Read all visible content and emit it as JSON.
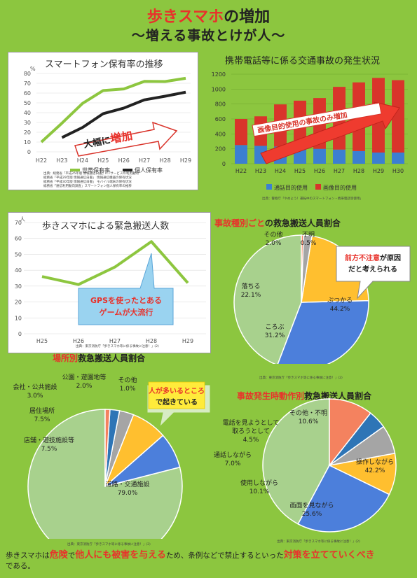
{
  "header": {
    "title_red": "歩きスマホ",
    "title_rest": "の増加",
    "subtitle": "〜増える事故とけが人〜"
  },
  "chart_data": [
    {
      "type": "line",
      "title": "スマートフォン保有率の推移",
      "ylabel": "%",
      "categories": [
        "H22",
        "H23",
        "H24",
        "H25",
        "H26",
        "H27",
        "H28",
        "H29"
      ],
      "ylim": [
        0,
        80
      ],
      "yticks": [
        0,
        10,
        20,
        30,
        40,
        50,
        60,
        70,
        80
      ],
      "series": [
        {
          "name": "世帯保有率",
          "color": "#8dc63f",
          "values": [
            10,
            29.3,
            49.5,
            62.6,
            64.2,
            72,
            71.8,
            75.1
          ]
        },
        {
          "name": "個人保有率",
          "color": "#222222",
          "values": [
            null,
            14.6,
            24.9,
            39,
            44.7,
            53.1,
            56.8,
            60.9
          ]
        }
      ],
      "annotation": {
        "text_pre": "大幅に",
        "text_em": "増加"
      },
      "source": [
        "出典：総務省「平成25年版 情報通信白書」ICTサービスの利用動向",
        "総務省「平成29年版 情報通信白書」",
        "情報通信機器の保有状況",
        "総務省「平成30年版 情報通信白書」",
        "モバイル端末の保有状況",
        "総務省「通信利用動向調査」スマートフォン個人保有率の推移"
      ]
    },
    {
      "type": "bar",
      "title": "携帯電話等に係る交通事故の発生状況",
      "categories": [
        "H22",
        "H23",
        "H24",
        "H25",
        "H26",
        "H27",
        "H28",
        "H29",
        "H30"
      ],
      "ylim": [
        0,
        1200
      ],
      "yticks": [
        0,
        200,
        400,
        600,
        800,
        1000,
        1200
      ],
      "series": [
        {
          "name": "通話目的使用",
          "color": "#3c7fd1",
          "values": [
            250,
            240,
            230,
            220,
            200,
            190,
            170,
            150,
            150
          ]
        },
        {
          "name": "画像目的使用",
          "color": "#d9342b",
          "values": [
            350,
            395,
            565,
            625,
            680,
            840,
            920,
            1000,
            970
          ]
        }
      ],
      "annotation": "画像目的使用の事故のみ増加",
      "source": "出典：警察庁「やめよう！運転中のスマートフォン・携帯電話等使用」"
    },
    {
      "type": "line",
      "title": "歩きスマホによる緊急搬送人数",
      "ylabel": "人",
      "categories": [
        "H25",
        "H26",
        "H27",
        "H28",
        "H29"
      ],
      "ylim": [
        0,
        70
      ],
      "yticks": [
        0,
        10,
        20,
        30,
        40,
        50,
        60,
        70
      ],
      "series": [
        {
          "name": "緊急搬送人数",
          "color": "#8dc63f",
          "values": [
            36,
            31,
            42,
            58,
            32
          ]
        }
      ],
      "annotation": [
        "GPSを使ったとある",
        "ゲームが大流行"
      ],
      "source": "出典：東京消防庁「歩きスマホ等に係る事故に注意！」(2)"
    },
    {
      "type": "pie",
      "title_red": "事故種別ごと",
      "title_rest": "の救急搬送人員割合",
      "slices": [
        {
          "label": "ぶつかる",
          "value": 44.2,
          "color": "#a8d18d"
        },
        {
          "label": "ころぶ",
          "value": 31.2,
          "color": "#4c7fdb"
        },
        {
          "label": "落ちる",
          "value": 22.1,
          "color": "#ffbf2f"
        },
        {
          "label": "その他",
          "value": 2.0,
          "color": "#a5a5a5"
        },
        {
          "label": "不明",
          "value": 0.5,
          "color": "#f4825f"
        }
      ],
      "note": [
        "前方不注意",
        "が原因",
        "だと考えられる"
      ],
      "source": "出典：東京消防庁「歩きスマホ等に係る事故に注意！」(2)"
    },
    {
      "type": "pie",
      "title_red": "場所別",
      "title_rest": "救急搬送人員割合",
      "slices": [
        {
          "label": "道路・交通施設",
          "value": 79,
          "color": "#a8d18d"
        },
        {
          "label": "店舗・遊技施設等",
          "value": 7.5,
          "color": "#4c7fdb"
        },
        {
          "label": "居住場所",
          "value": 7.5,
          "color": "#ffbf2f"
        },
        {
          "label": "会社・公共施設",
          "value": 3.0,
          "color": "#a5a5a5"
        },
        {
          "label": "公園・遊園地等",
          "value": 2.0,
          "color": "#2e75b6"
        },
        {
          "label": "その他",
          "value": 1.0,
          "color": "#f4825f"
        }
      ],
      "note": [
        "人が多いるところ",
        "で起きている"
      ],
      "source": "出典：東京消防庁「歩きスマホ等に係る事故に注意！」(2)"
    },
    {
      "type": "pie",
      "title_red": "事故発生時動作別",
      "title_rest": "救急搬送人員割合",
      "slices": [
        {
          "label": "操作しながら",
          "value": 42.2,
          "color": "#a8d18d"
        },
        {
          "label": "画面を見ながら",
          "value": 25.6,
          "color": "#4c7fdb"
        },
        {
          "label": "使用しながら",
          "value": 10.1,
          "color": "#ffbf2f"
        },
        {
          "label": "通話しながら",
          "value": 7.0,
          "color": "#a5a5a5"
        },
        {
          "label": "電話を見ようとして取ろうとして",
          "value": 4.5,
          "color": "#2e75b6"
        },
        {
          "label": "その他・不明",
          "value": 10.6,
          "color": "#f4825f"
        }
      ],
      "source": "出典：東京消防庁「歩きスマホ等に係る事故に注意！」(2)"
    }
  ],
  "footer": {
    "t1": "歩きスマホは",
    "t2": "危険",
    "t3": "で",
    "t4": "他人にも被害を与える",
    "t5": "ため、条例などで禁止するといった",
    "t6": "対策を立てていくべき",
    "t7": "である。"
  }
}
